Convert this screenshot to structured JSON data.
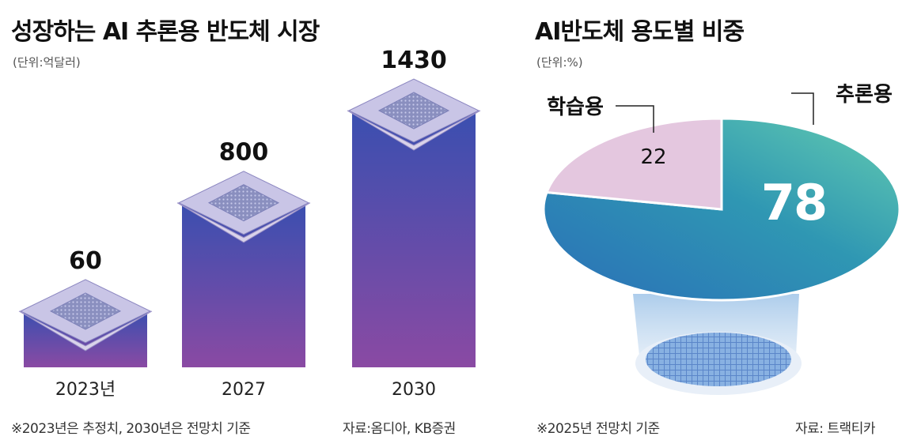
{
  "left": {
    "title": "성장하는 AI 추론용 반도체 시장",
    "unit": "(단위:억달러)",
    "footnote": "※2023년은 추정치, 2030년은 전망치 기준",
    "source": "자료:옴디아, KB증권"
  },
  "right": {
    "title": "AI반도체 용도별 비중",
    "unit": "(단위:%)",
    "footnote": "※2025년 전망치 기준",
    "source": "자료: 트랙티카"
  },
  "chart_data": [
    {
      "type": "bar",
      "title": "성장하는 AI 추론용 반도체 시장",
      "ylabel": "(단위:억달러)",
      "categories": [
        "2023년",
        "2027",
        "2030"
      ],
      "values": [
        60,
        800,
        1430
      ],
      "value_labels": [
        "60",
        "800",
        "1430"
      ],
      "colors": {
        "bar_top": "#3a4fb0",
        "bar_bottom": "#8a4aa3"
      }
    },
    {
      "type": "pie",
      "title": "AI반도체 용도별 비중",
      "ylabel": "(단위:%)",
      "slices": [
        {
          "label": "추론용",
          "value": 78,
          "value_label": "78",
          "color": "#2f8fb0"
        },
        {
          "label": "학습용",
          "value": 22,
          "value_label": "22",
          "color": "#e4c7df"
        }
      ]
    }
  ]
}
